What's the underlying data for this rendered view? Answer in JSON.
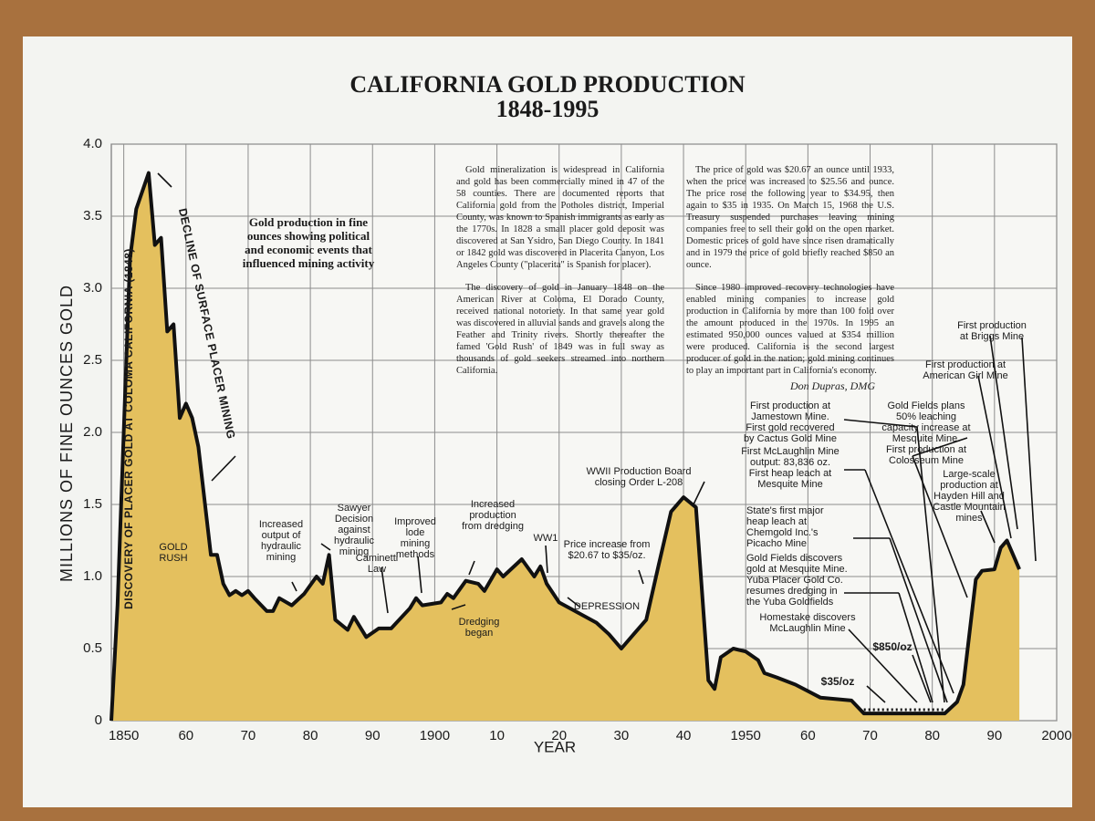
{
  "chart_data": {
    "type": "area",
    "title": "CALIFORNIA GOLD PRODUCTION",
    "subtitle": "1848-1995",
    "ylabel": "MILLIONS OF FINE OUNCES GOLD",
    "xlabel": "YEAR",
    "color": "#e4c05e",
    "line_color": "#111111",
    "grid": true,
    "xlim": [
      1848,
      2000
    ],
    "ylim": [
      0,
      4
    ],
    "xticks": [
      1850,
      {
        "value": 1860,
        "label": "60"
      },
      {
        "value": 1870,
        "label": "70"
      },
      {
        "value": 1880,
        "label": "80"
      },
      {
        "value": 1890,
        "label": "90"
      },
      1900,
      {
        "value": 1910,
        "label": "10"
      },
      {
        "value": 1920,
        "label": "20"
      },
      {
        "value": 1930,
        "label": "30"
      },
      {
        "value": 1940,
        "label": "40"
      },
      1950,
      {
        "value": 1960,
        "label": "60"
      },
      {
        "value": 1970,
        "label": "70"
      },
      {
        "value": 1980,
        "label": "80"
      },
      {
        "value": 1990,
        "label": "90"
      },
      2000
    ],
    "yticks": [
      0,
      0.5,
      {
        "value": 1,
        "label": "1.0"
      },
      1.5,
      {
        "value": 2,
        "label": "2.0"
      },
      2.5,
      {
        "value": 3,
        "label": "3.0"
      },
      3.5,
      {
        "value": 4,
        "label": "4.0"
      }
    ],
    "x": [
      1848,
      1849,
      1850,
      1851,
      1852,
      1854,
      1855,
      1856,
      1857,
      1858,
      1859,
      1860,
      1861,
      1862,
      1864,
      1865,
      1866,
      1867,
      1868,
      1869,
      1870,
      1871,
      1873,
      1874,
      1875,
      1877,
      1879,
      1881,
      1882,
      1883,
      1884,
      1886,
      1887,
      1889,
      1891,
      1893,
      1896,
      1897,
      1898,
      1901,
      1902,
      1903,
      1905,
      1907,
      1908,
      1910,
      1911,
      1914,
      1916,
      1917,
      1918,
      1920,
      1923,
      1926,
      1928,
      1930,
      1932,
      1934,
      1936,
      1938,
      1940,
      1942,
      1944,
      1945,
      1946,
      1948,
      1950,
      1952,
      1953,
      1955,
      1958,
      1962,
      1967,
      1969,
      1982,
      1984,
      1985,
      1987,
      1988,
      1990,
      1991,
      1992,
      1994
    ],
    "values": [
      0,
      0.8,
      2.0,
      3.2,
      3.55,
      3.8,
      3.3,
      3.35,
      2.7,
      2.75,
      2.1,
      2.2,
      2.1,
      1.9,
      1.15,
      1.15,
      0.95,
      0.87,
      0.9,
      0.87,
      0.9,
      0.85,
      0.76,
      0.76,
      0.85,
      0.8,
      0.88,
      1.0,
      0.95,
      1.15,
      0.7,
      0.63,
      0.72,
      0.58,
      0.64,
      0.64,
      0.78,
      0.85,
      0.8,
      0.82,
      0.88,
      0.85,
      0.97,
      0.95,
      0.9,
      1.05,
      1.0,
      1.12,
      1.0,
      1.07,
      0.95,
      0.82,
      0.75,
      0.68,
      0.6,
      0.5,
      0.6,
      0.7,
      1.08,
      1.45,
      1.55,
      1.48,
      0.28,
      0.22,
      0.44,
      0.5,
      0.48,
      0.42,
      0.33,
      0.3,
      0.25,
      0.16,
      0.14,
      0.05,
      0.05,
      0.13,
      0.25,
      0.98,
      1.04,
      1.05,
      1.2,
      1.25,
      1.05
    ],
    "vertical_notes": [
      "DISCOVERY OF PLACER GOLD AT COLOMA CALIFORNIA (1848)",
      "DECLINE OF SURFACE PLACER MINING"
    ],
    "annotations": [
      {
        "lines": [
          "Gold production in fine",
          "ounces showing political",
          "and economic events that",
          "influenced mining activity"
        ]
      },
      {
        "lines": [
          "GOLD",
          "RUSH"
        ]
      },
      {
        "lines": [
          "Increased",
          "output of",
          "hydraulic",
          "mining"
        ]
      },
      {
        "lines": [
          "Sawyer",
          "Decision",
          "against",
          "hydraulic",
          "mining"
        ]
      },
      {
        "lines": [
          "Caminetti",
          "Law"
        ]
      },
      {
        "lines": [
          "Improved",
          "lode",
          "mining",
          "methods"
        ]
      },
      {
        "lines": [
          "Dredging",
          "began"
        ]
      },
      {
        "lines": [
          "Increased",
          "production",
          "from dredging"
        ]
      },
      {
        "lines": [
          "WW1"
        ]
      },
      {
        "lines": [
          "Price increase from",
          "$20.67 to $35/oz."
        ]
      },
      {
        "lines": [
          "DEPRESSION"
        ]
      },
      {
        "lines": [
          "WWII Production Board",
          "closing Order L-208"
        ]
      },
      {
        "lines": [
          "First production at",
          "Jamestown Mine.",
          "First gold recovered",
          "by Cactus Gold Mine"
        ]
      },
      {
        "lines": [
          "First McLaughlin Mine",
          "output: 83,836 oz.",
          "First heap leach at",
          "Mesquite Mine"
        ]
      },
      {
        "lines": [
          "State's first major",
          "heap leach at",
          "Chemgold Inc.'s",
          "Picacho Mine"
        ]
      },
      {
        "lines": [
          "Gold Fields discovers",
          "gold at Mesquite Mine.",
          "Yuba Placer Gold Co.",
          "resumes dredging in",
          "the Yuba Goldfields"
        ]
      },
      {
        "lines": [
          "Homestake discovers",
          "McLaughlin Mine"
        ]
      },
      {
        "lines": [
          "$850/oz"
        ]
      },
      {
        "lines": [
          "$35/oz"
        ]
      },
      {
        "lines": [
          "Gold Fields plans",
          "50% leaching",
          "capacity increase at",
          "Mesquite Mine.",
          "First production at",
          "Colosseum Mine"
        ]
      },
      {
        "lines": [
          "First production",
          "at Briggs Mine"
        ]
      },
      {
        "lines": [
          "First production at",
          "American Girl Mine"
        ]
      },
      {
        "lines": [
          "Large-scale",
          "production at",
          "Hayden Hill and",
          "Castle Mountain",
          "mines"
        ]
      }
    ],
    "text_columns": [
      [
        "Gold mineralization is widespread in California and gold has been commercially mined in 47 of the 58 counties. There are documented reports that California gold from the Potholes district, Imperial County, was known to Spanish immigrants as early as the 1770s. In 1828 a small placer gold deposit was discovered at San Ysidro, San Diego County. In 1841 or 1842 gold was discovered in Placerita Canyon, Los Angeles County (\"placerita\" is Spanish for placer).",
        "The discovery of gold in January 1848 on the American River at Coloma, El Dorado County, received national notoriety. In that same year gold was discovered in alluvial sands and gravels along the Feather and Trinity rivers. Shortly thereafter the famed 'Gold Rush' of 1849 was in full sway as thousands of gold seekers streamed into northern California."
      ],
      [
        "The price of gold was $20.67 an ounce until 1933, when the price was increased to $25.56 and ounce. The price rose the following year to $34.95, then again to $35 in 1935. On March 15, 1968 the U.S. Treasury suspended purchases leaving mining companies free to sell their gold on the open market. Domestic prices of gold have since risen dramatically and in 1979 the price of gold briefly reached $850 an ounce.",
        "Since 1980 improved recovery technologies have enabled mining companies to increase gold production in California by more than 100 fold over the amount produced in the 1970s. In 1995 an estimated 950,000 ounces valued at $354 million were produced. California is the second largest producer of gold in the nation; gold mining continues to play an important part in California's economy."
      ]
    ],
    "signature": "Don Dupras, DMG"
  }
}
